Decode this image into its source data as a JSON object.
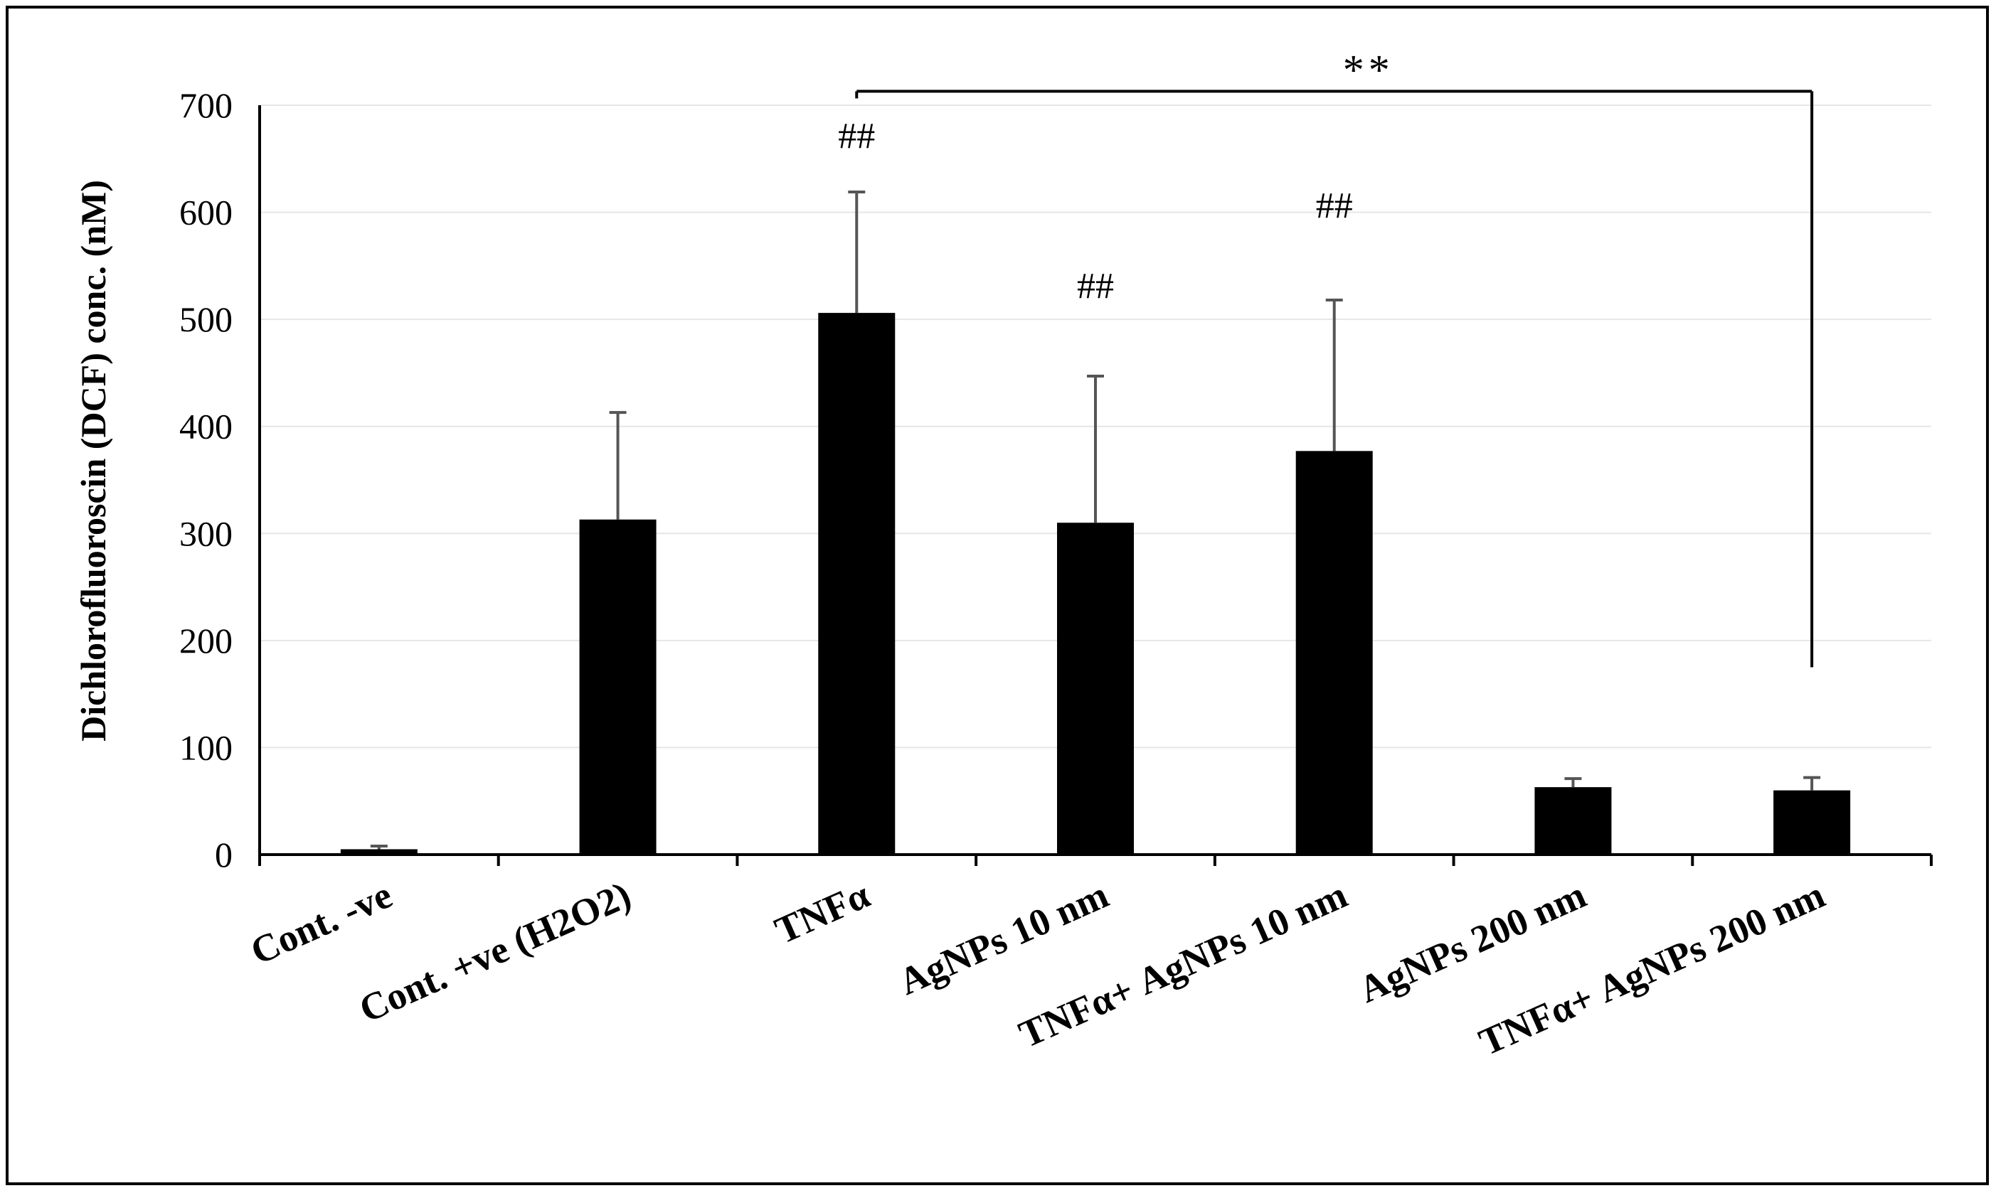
{
  "chart_data": {
    "type": "bar",
    "title": "",
    "xlabel": "",
    "ylabel": "Dichlorofluoroscin (DCF) conc. (nM)",
    "ylim": [
      0,
      700
    ],
    "yticks": [
      0,
      100,
      200,
      300,
      400,
      500,
      600,
      700
    ],
    "grid": true,
    "legend": "none",
    "bar_color": "#000000",
    "categories": [
      "Cont. -ve",
      "Cont. +ve (H2O2)",
      "TNFα",
      "AgNPs 10 nm",
      "TNFα+ AgNPs 10 nm",
      "AgNPs 200 nm",
      "TNFα+ AgNPs 200 nm"
    ],
    "values": [
      5,
      313,
      506,
      310,
      377,
      63,
      60
    ],
    "errors": [
      3,
      100,
      113,
      137,
      141,
      8,
      12
    ],
    "annotations": [
      {
        "category_index": 2,
        "text": "##",
        "y": 660
      },
      {
        "category_index": 3,
        "text": "##",
        "y": 520
      },
      {
        "category_index": 4,
        "text": "##",
        "y": 595
      }
    ],
    "significance": {
      "from_index": 2,
      "to_index": 6,
      "text": "**",
      "y": 713,
      "drop_to": 175
    }
  }
}
